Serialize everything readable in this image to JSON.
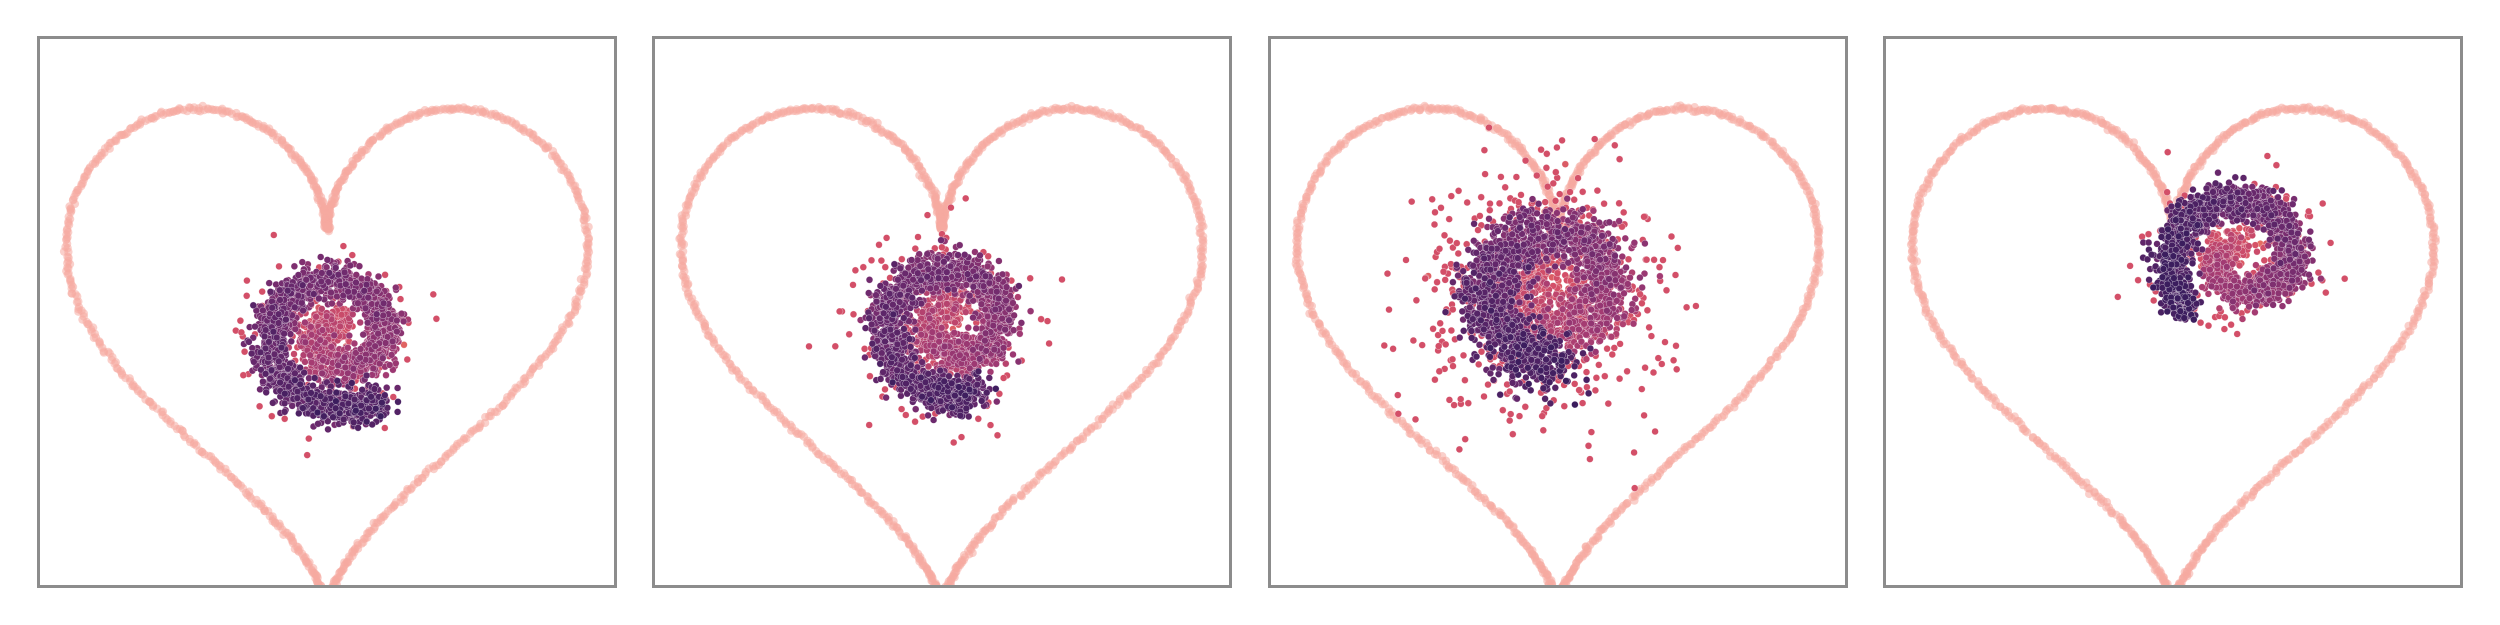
{
  "chart_data": [
    {
      "type": "scatter",
      "title": "",
      "xlabel": "",
      "ylabel": "",
      "axis_ticks": "none",
      "grid": false,
      "legend": "none",
      "boundary": {
        "shape": "heart",
        "color": "#f6aaa0"
      },
      "colormap": [
        "#3b1d5e",
        "#6e2a6e",
        "#a13a73",
        "#d34f68",
        "#ee7b5c"
      ],
      "spiral": {
        "center": [
          0.52,
          0.54
        ],
        "r0": 0.004,
        "k": 0.3,
        "t_start": 0.3,
        "t_end": 11.5,
        "dir": -1,
        "spread": 0.032,
        "n": 2400,
        "ox": 0.0,
        "oy": 0.0,
        "scatter_fraction": 0.05,
        "cmin": 0.15,
        "cmax": 0.8
      }
    },
    {
      "type": "scatter",
      "title": "",
      "xlabel": "",
      "ylabel": "",
      "axis_ticks": "none",
      "grid": false,
      "legend": "none",
      "boundary": {
        "shape": "heart",
        "color": "#f6aaa0"
      },
      "colormap": [
        "#3b1d5e",
        "#6e2a6e",
        "#a13a73",
        "#d34f68",
        "#ee7b5c"
      ],
      "spiral": {
        "center": [
          0.52,
          0.52
        ],
        "r0": 0.004,
        "k": 0.3,
        "t_start": 0.3,
        "t_end": 11.3,
        "dir": -1,
        "spread": 0.035,
        "n": 2400,
        "ox": 0.0,
        "oy": 0.0,
        "scatter_fraction": 0.08,
        "cmin": 0.15,
        "cmax": 0.8
      }
    },
    {
      "type": "scatter",
      "title": "",
      "xlabel": "",
      "ylabel": "",
      "axis_ticks": "none",
      "grid": false,
      "legend": "none",
      "boundary": {
        "shape": "heart",
        "color": "#f6aaa0"
      },
      "colormap": [
        "#3b1d5e",
        "#6e2a6e",
        "#a13a73",
        "#d34f68",
        "#ee7b5c"
      ],
      "spiral": {
        "center": [
          0.5,
          0.46
        ],
        "r0": 0.02,
        "k": 0.27,
        "t_start": 1.0,
        "t_end": 11.0,
        "dir": -1,
        "spread": 0.055,
        "n": 2400,
        "ox": 0.0,
        "oy": 0.0,
        "scatter_fraction": 0.22,
        "cmin": 0.1,
        "cmax": 0.9
      }
    },
    {
      "type": "scatter",
      "title": "",
      "xlabel": "",
      "ylabel": "",
      "axis_ticks": "none",
      "grid": false,
      "legend": "none",
      "boundary": {
        "shape": "heart",
        "color": "#f6aaa0"
      },
      "colormap": [
        "#3b1d5e",
        "#6e2a6e",
        "#a13a73",
        "#d34f68",
        "#ee7b5c"
      ],
      "spiral": {
        "center": [
          0.62,
          0.4
        ],
        "r0": 0.004,
        "k": 0.32,
        "t_start": 0.6,
        "t_end": 10.2,
        "dir": -1,
        "spread": 0.032,
        "n": 2000,
        "ox": 0.0,
        "oy": 0.0,
        "scatter_fraction": 0.06,
        "cmin": 0.05,
        "cmax": 0.85
      }
    }
  ]
}
